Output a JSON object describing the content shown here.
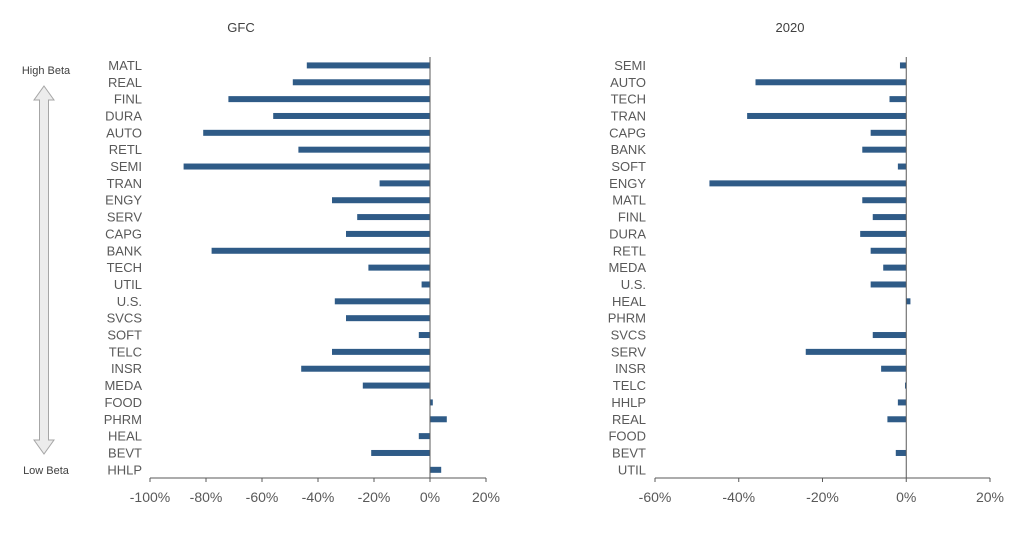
{
  "colors": {
    "bar": "#2f5b87",
    "axis": "#595959",
    "arrow_fill": "#ececec",
    "arrow_stroke": "#a6a6a6"
  },
  "beta_labels": {
    "high": "High Beta",
    "low": "Low Beta"
  },
  "chart_data": [
    {
      "type": "bar",
      "orientation": "horizontal",
      "title": "GFC",
      "categories": [
        "MATL",
        "REAL",
        "FINL",
        "DURA",
        "AUTO",
        "RETL",
        "SEMI",
        "TRAN",
        "ENGY",
        "SERV",
        "CAPG",
        "BANK",
        "TECH",
        "UTIL",
        "U.S.",
        "SVCS",
        "SOFT",
        "TELC",
        "INSR",
        "MEDA",
        "FOOD",
        "PHRM",
        "HEAL",
        "BEVT",
        "HHLP"
      ],
      "values": [
        -44,
        -49,
        -72,
        -56,
        -81,
        -47,
        -88,
        -18,
        -35,
        -26,
        -30,
        -78,
        -22,
        -3,
        -34,
        -30,
        -4,
        -35,
        -46,
        -24,
        1,
        6,
        -4,
        -21,
        4
      ],
      "xlim": [
        -100,
        20
      ],
      "xticks": [
        "-100%",
        "-80%",
        "-60%",
        "-40%",
        "-20%",
        "0%",
        "20%"
      ],
      "grid": false,
      "legend": "none"
    },
    {
      "type": "bar",
      "orientation": "horizontal",
      "title": "2020",
      "categories": [
        "SEMI",
        "AUTO",
        "TECH",
        "TRAN",
        "CAPG",
        "BANK",
        "SOFT",
        "ENGY",
        "MATL",
        "FINL",
        "DURA",
        "RETL",
        "MEDA",
        "U.S.",
        "HEAL",
        "PHRM",
        "SVCS",
        "SERV",
        "INSR",
        "TELC",
        "HHLP",
        "REAL",
        "FOOD",
        "BEVT",
        "UTIL"
      ],
      "values": [
        -1.5,
        -36,
        -4,
        -38,
        -8.5,
        -10.5,
        -2,
        -47,
        -10.5,
        -8,
        -11,
        -8.5,
        -5.5,
        -8.5,
        1,
        0,
        -8,
        -24,
        -6,
        -0.3,
        -2,
        -4.5,
        0,
        -2.5,
        0
      ],
      "xlim": [
        -60,
        20
      ],
      "xticks": [
        "-60%",
        "-40%",
        "-20%",
        "0%",
        "20%"
      ],
      "grid": false,
      "legend": "none"
    }
  ]
}
